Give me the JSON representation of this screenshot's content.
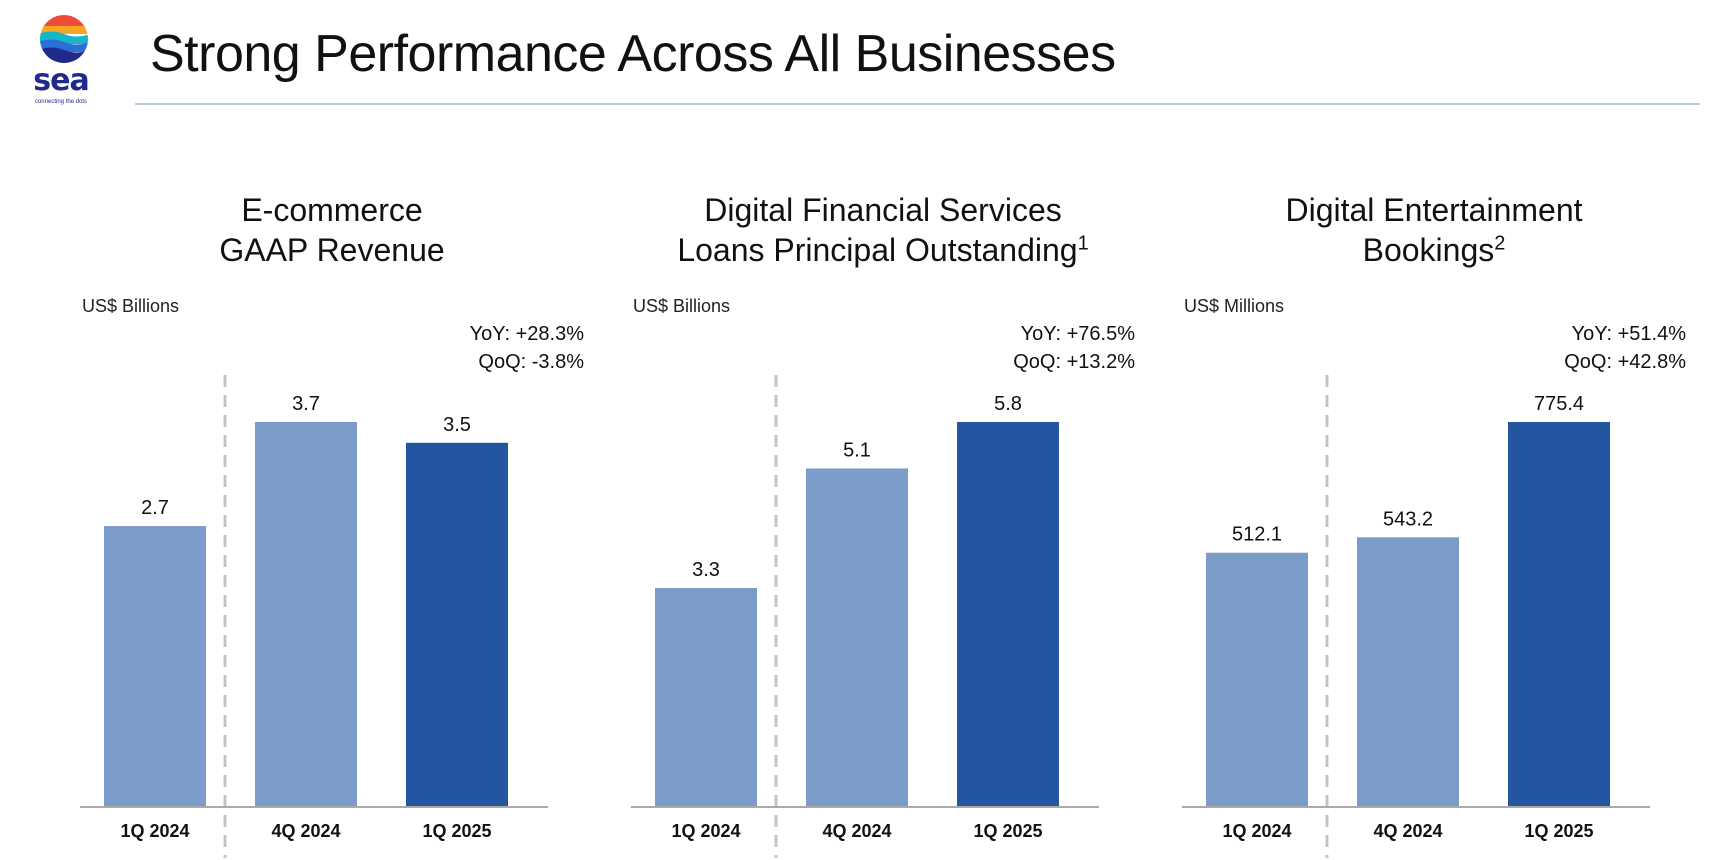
{
  "logo": {
    "wordmark": "sea",
    "tagline": "connecting the dots"
  },
  "page": {
    "title": "Strong Performance Across All Businesses"
  },
  "colors": {
    "bar_prior": "#7b9bc8",
    "bar_current": "#2355a0",
    "axis": "#aaaaaa",
    "divider": "#c4c4c4"
  },
  "charts": [
    {
      "title_line1": "E-commerce",
      "title_line2": "GAAP Revenue",
      "footnote": "",
      "unit": "US$ Billions",
      "yoy": "YoY: +28.3%",
      "qoq": "QoQ: -3.8%"
    },
    {
      "title_line1": "Digital Financial Services",
      "title_line2": "Loans Principal Outstanding",
      "footnote": "1",
      "unit": "US$ Billions",
      "yoy": "YoY: +76.5%",
      "qoq": "QoQ: +13.2%"
    },
    {
      "title_line1": "Digital Entertainment",
      "title_line2": "Bookings",
      "footnote": "2",
      "unit": "US$ Millions",
      "yoy": "YoY: +51.4%",
      "qoq": "QoQ: +42.8%"
    }
  ],
  "chart_data": [
    {
      "type": "bar",
      "title": "E-commerce GAAP Revenue",
      "ylabel": "US$ Billions",
      "categories": [
        "1Q 2024",
        "4Q 2024",
        "1Q 2025"
      ],
      "values": [
        2.7,
        3.7,
        3.5
      ],
      "labels": [
        "2.7",
        "3.7",
        "3.5"
      ],
      "highlight_index": 2,
      "ylim": [
        0,
        3.7
      ],
      "grid": false
    },
    {
      "type": "bar",
      "title": "Digital Financial Services Loans Principal Outstanding",
      "ylabel": "US$ Billions",
      "categories": [
        "1Q 2024",
        "4Q 2024",
        "1Q 2025"
      ],
      "values": [
        3.3,
        5.1,
        5.8
      ],
      "labels": [
        "3.3",
        "5.1",
        "5.8"
      ],
      "highlight_index": 2,
      "ylim": [
        0,
        5.8
      ],
      "grid": false
    },
    {
      "type": "bar",
      "title": "Digital Entertainment Bookings",
      "ylabel": "US$ Millions",
      "categories": [
        "1Q 2024",
        "4Q 2024",
        "1Q 2025"
      ],
      "values": [
        512.1,
        543.2,
        775.4
      ],
      "labels": [
        "512.1",
        "543.2",
        "775.4"
      ],
      "highlight_index": 2,
      "ylim": [
        0,
        775.4
      ],
      "grid": false
    }
  ]
}
